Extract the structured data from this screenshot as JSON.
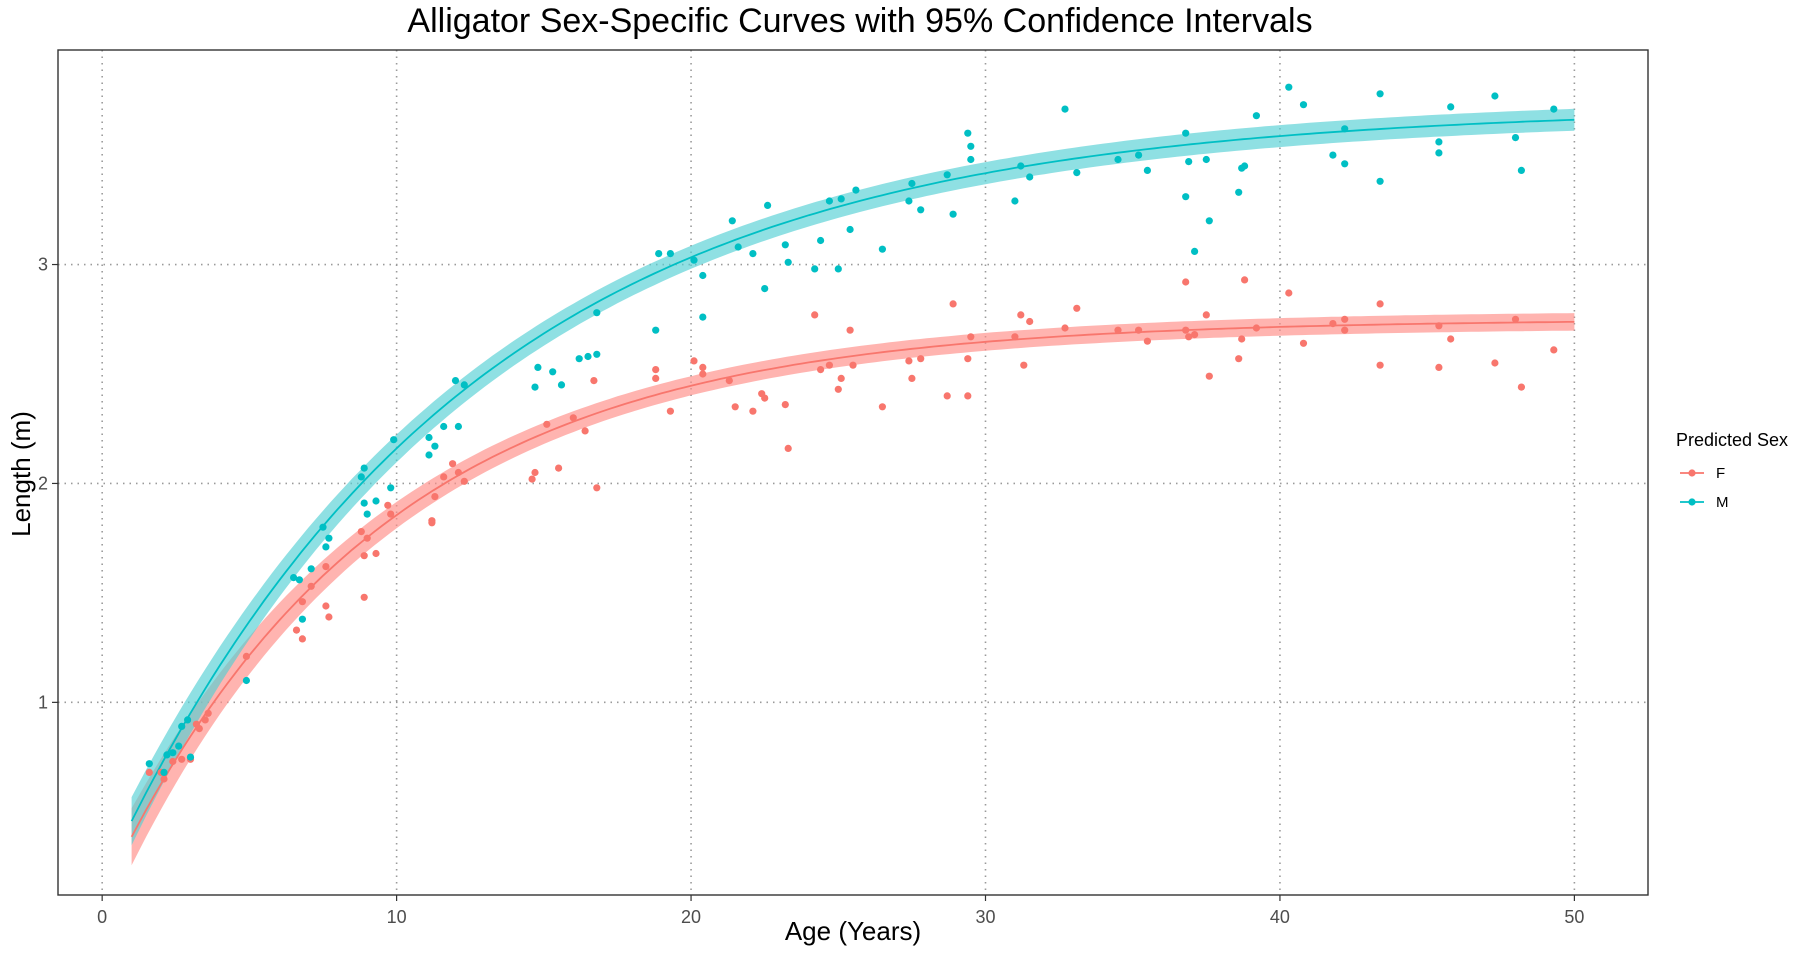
{
  "chart_data": {
    "type": "scatter",
    "title": "Alligator Sex-Specific Curves with 95% Confidence Intervals",
    "xlabel": "Age (Years)",
    "ylabel": "Length (m)",
    "xlim": [
      -1.5,
      52.5
    ],
    "ylim": [
      0.12,
      3.98
    ],
    "x_ticks": [
      0,
      10,
      20,
      30,
      40,
      50
    ],
    "y_ticks": [
      1,
      2,
      3
    ],
    "grid": "dotted major gridlines",
    "legend": {
      "title": "Predicted Sex",
      "position": "right",
      "items": [
        {
          "label": "F",
          "color": "#F8766D"
        },
        {
          "label": "M",
          "color": "#00BFC4"
        }
      ]
    },
    "series": [
      {
        "name": "F",
        "color": "#F8766D",
        "band_color": "#FF8C85",
        "fit": {
          "linf": 2.75,
          "k": 0.108,
          "t0": -0.4
        },
        "ci_halfwidth_start": 0.13,
        "ci_halfwidth_end": 0.04,
        "points": [
          [
            1.6,
            0.68
          ],
          [
            2,
            0.68
          ],
          [
            2.1,
            0.65
          ],
          [
            2.4,
            0.73
          ],
          [
            2.7,
            0.74
          ],
          [
            3,
            0.74
          ],
          [
            3.2,
            0.9
          ],
          [
            3.3,
            0.88
          ],
          [
            3.5,
            0.92
          ],
          [
            3.6,
            0.95
          ],
          [
            4.9,
            1.21
          ],
          [
            6.6,
            1.33
          ],
          [
            6.8,
            1.46
          ],
          [
            6.8,
            1.29
          ],
          [
            7.1,
            1.53
          ],
          [
            7.6,
            1.62
          ],
          [
            7.6,
            1.44
          ],
          [
            7.7,
            1.39
          ],
          [
            8.8,
            1.78
          ],
          [
            8.9,
            1.48
          ],
          [
            8.9,
            1.67
          ],
          [
            9,
            1.75
          ],
          [
            9.3,
            1.68
          ],
          [
            9.7,
            1.9
          ],
          [
            9.8,
            1.86
          ],
          [
            11.2,
            1.83
          ],
          [
            11.2,
            1.82
          ],
          [
            11.3,
            1.94
          ],
          [
            11.6,
            2.03
          ],
          [
            11.9,
            2.09
          ],
          [
            12.1,
            2.05
          ],
          [
            12.3,
            2.01
          ],
          [
            14.6,
            2.02
          ],
          [
            14.7,
            2.05
          ],
          [
            15.1,
            2.27
          ],
          [
            15.5,
            2.07
          ],
          [
            16,
            2.3
          ],
          [
            16.4,
            2.24
          ],
          [
            16.7,
            2.47
          ],
          [
            16.8,
            1.98
          ],
          [
            18.8,
            2.52
          ],
          [
            18.8,
            2.48
          ],
          [
            19.3,
            2.33
          ],
          [
            20.1,
            2.56
          ],
          [
            20.4,
            2.5
          ],
          [
            20.4,
            2.53
          ],
          [
            21.3,
            2.47
          ],
          [
            21.5,
            2.35
          ],
          [
            22.1,
            2.33
          ],
          [
            22.4,
            2.41
          ],
          [
            22.5,
            2.39
          ],
          [
            23.2,
            2.36
          ],
          [
            23.3,
            2.16
          ],
          [
            24.2,
            2.77
          ],
          [
            24.4,
            2.52
          ],
          [
            24.7,
            2.54
          ],
          [
            25,
            2.43
          ],
          [
            25.1,
            2.48
          ],
          [
            25.4,
            2.7
          ],
          [
            25.5,
            2.54
          ],
          [
            26.5,
            2.35
          ],
          [
            27.4,
            2.56
          ],
          [
            27.5,
            2.48
          ],
          [
            27.8,
            2.57
          ],
          [
            28.7,
            2.4
          ],
          [
            28.9,
            2.82
          ],
          [
            29.4,
            2.57
          ],
          [
            29.4,
            2.4
          ],
          [
            29.5,
            2.67
          ],
          [
            31,
            2.67
          ],
          [
            31.2,
            2.77
          ],
          [
            31.3,
            2.54
          ],
          [
            31.5,
            2.74
          ],
          [
            32.7,
            2.71
          ],
          [
            33.1,
            2.8
          ],
          [
            34.5,
            2.7
          ],
          [
            35.2,
            2.7
          ],
          [
            35.5,
            2.65
          ],
          [
            36.8,
            2.92
          ],
          [
            36.8,
            2.7
          ],
          [
            36.9,
            2.67
          ],
          [
            37.1,
            2.68
          ],
          [
            37.5,
            2.77
          ],
          [
            37.6,
            2.49
          ],
          [
            38.6,
            2.57
          ],
          [
            38.7,
            2.66
          ],
          [
            38.8,
            2.93
          ],
          [
            39.2,
            2.71
          ],
          [
            40.3,
            2.87
          ],
          [
            40.8,
            2.64
          ],
          [
            41.8,
            2.73
          ],
          [
            42.2,
            2.75
          ],
          [
            42.2,
            2.7
          ],
          [
            43.4,
            2.82
          ],
          [
            43.4,
            2.54
          ],
          [
            45.4,
            2.53
          ],
          [
            45.4,
            2.72
          ],
          [
            45.8,
            2.66
          ],
          [
            47.3,
            2.55
          ],
          [
            48,
            2.75
          ],
          [
            48.2,
            2.44
          ],
          [
            49.3,
            2.61
          ]
        ]
      },
      {
        "name": "M",
        "color": "#00BFC4",
        "band_color": "#53D0D4",
        "fit": {
          "linf": 3.72,
          "k": 0.082,
          "t0": -0.6
        },
        "ci_halfwidth_start": 0.11,
        "ci_halfwidth_end": 0.05,
        "points": [
          [
            1.6,
            0.72
          ],
          [
            2.1,
            0.68
          ],
          [
            2.2,
            0.76
          ],
          [
            2.4,
            0.77
          ],
          [
            2.6,
            0.8
          ],
          [
            2.7,
            0.89
          ],
          [
            2.9,
            0.92
          ],
          [
            3,
            0.75
          ],
          [
            4.9,
            1.1
          ],
          [
            6.5,
            1.57
          ],
          [
            6.7,
            1.56
          ],
          [
            6.8,
            1.38
          ],
          [
            7.1,
            1.61
          ],
          [
            7.5,
            1.8
          ],
          [
            7.6,
            1.71
          ],
          [
            7.7,
            1.75
          ],
          [
            8.8,
            2.03
          ],
          [
            8.9,
            2.07
          ],
          [
            8.9,
            1.91
          ],
          [
            9,
            1.86
          ],
          [
            9.3,
            1.92
          ],
          [
            9.8,
            1.98
          ],
          [
            9.9,
            2.2
          ],
          [
            11.1,
            2.13
          ],
          [
            11.1,
            2.21
          ],
          [
            11.3,
            2.17
          ],
          [
            11.6,
            2.26
          ],
          [
            12.1,
            2.26
          ],
          [
            12,
            2.47
          ],
          [
            12.3,
            2.45
          ],
          [
            14.7,
            2.44
          ],
          [
            14.8,
            2.53
          ],
          [
            15.3,
            2.51
          ],
          [
            15.6,
            2.45
          ],
          [
            16.2,
            2.57
          ],
          [
            16.5,
            2.58
          ],
          [
            16.8,
            2.59
          ],
          [
            16.8,
            2.78
          ],
          [
            18.8,
            2.7
          ],
          [
            18.9,
            3.05
          ],
          [
            19.3,
            3.05
          ],
          [
            20.1,
            3.02
          ],
          [
            20.4,
            2.95
          ],
          [
            20.4,
            2.76
          ],
          [
            21.4,
            3.2
          ],
          [
            21.6,
            3.08
          ],
          [
            22.1,
            3.05
          ],
          [
            22.5,
            2.89
          ],
          [
            22.6,
            3.27
          ],
          [
            23.2,
            3.09
          ],
          [
            23.3,
            3.01
          ],
          [
            24.2,
            2.98
          ],
          [
            24.4,
            3.11
          ],
          [
            24.7,
            3.29
          ],
          [
            25,
            2.98
          ],
          [
            25.1,
            3.3
          ],
          [
            25.4,
            3.16
          ],
          [
            25.6,
            3.34
          ],
          [
            26.5,
            3.07
          ],
          [
            27.4,
            3.29
          ],
          [
            27.5,
            3.37
          ],
          [
            27.8,
            3.25
          ],
          [
            28.7,
            3.41
          ],
          [
            28.9,
            3.23
          ],
          [
            29.4,
            3.6
          ],
          [
            29.5,
            3.54
          ],
          [
            29.5,
            3.48
          ],
          [
            31,
            3.29
          ],
          [
            31.2,
            3.45
          ],
          [
            31.5,
            3.4
          ],
          [
            32.7,
            3.71
          ],
          [
            33.1,
            3.42
          ],
          [
            34.5,
            3.48
          ],
          [
            35.2,
            3.5
          ],
          [
            35.5,
            3.43
          ],
          [
            36.8,
            3.6
          ],
          [
            36.8,
            3.31
          ],
          [
            36.9,
            3.47
          ],
          [
            37.1,
            3.06
          ],
          [
            37.5,
            3.48
          ],
          [
            37.6,
            3.2
          ],
          [
            38.6,
            3.33
          ],
          [
            38.7,
            3.44
          ],
          [
            38.8,
            3.45
          ],
          [
            39.2,
            3.68
          ],
          [
            40.3,
            3.81
          ],
          [
            40.8,
            3.73
          ],
          [
            41.8,
            3.5
          ],
          [
            42.2,
            3.62
          ],
          [
            42.2,
            3.46
          ],
          [
            43.4,
            3.78
          ],
          [
            43.4,
            3.38
          ],
          [
            45.4,
            3.51
          ],
          [
            45.4,
            3.56
          ],
          [
            45.8,
            3.72
          ],
          [
            47.3,
            3.77
          ],
          [
            48,
            3.58
          ],
          [
            48.2,
            3.43
          ],
          [
            49.3,
            3.71
          ]
        ]
      }
    ]
  }
}
